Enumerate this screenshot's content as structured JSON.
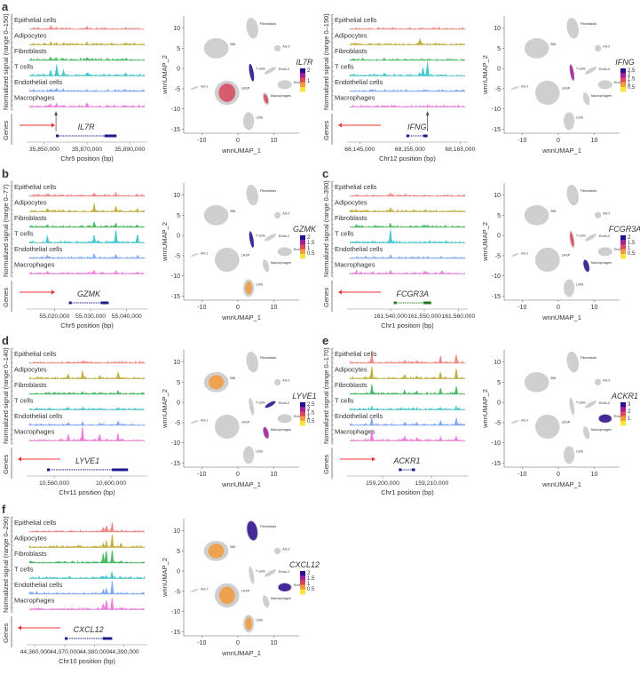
{
  "track_colors": [
    "#f0746e",
    "#b8a21a",
    "#2ab24a",
    "#22bfc4",
    "#6b9cf5",
    "#ee66d8"
  ],
  "colormap": [
    "#f9e33a",
    "#f39a3a",
    "#d9485f",
    "#a3209a",
    "#2b0d8f"
  ],
  "tracks": [
    "Epithelial cells",
    "Adipocytes",
    "Fibroblasts",
    "T cells",
    "Endothelial cells",
    "Macrophages"
  ],
  "genes_label": "Genes",
  "umap": {
    "xlabel": "wnnUMAP_1",
    "ylabel": "wnnUMAP_2",
    "xticks": [
      -10,
      0,
      10
    ],
    "yticks": [
      10,
      5,
      0,
      -5,
      -10,
      -15
    ],
    "xlim": [
      -15,
      17
    ],
    "ylim": [
      -16,
      13
    ],
    "clusters": [
      {
        "name": "Fibroblasts",
        "x": 4,
        "y": 10,
        "rx": 1.6,
        "ry": 2.6,
        "rot": -10
      },
      {
        "name": "BM",
        "x": -6,
        "y": 5,
        "rx": 3.4,
        "ry": 2.5,
        "rot": 0
      },
      {
        "name": "Ad-2",
        "x": 11,
        "y": 5,
        "rx": 0.9,
        "ry": 0.8,
        "rot": 0
      },
      {
        "name": "T cells",
        "x": 3.8,
        "y": -1,
        "rx": 0.6,
        "ry": 2.2,
        "rot": -10
      },
      {
        "name": "Endo-2",
        "x": 9,
        "y": -0.5,
        "rx": 1.8,
        "ry": 0.5,
        "rot": -30
      },
      {
        "name": "Endo-1",
        "x": 13,
        "y": -4,
        "rx": 2.0,
        "ry": 1.1,
        "rot": 0
      },
      {
        "name": "Ad-1",
        "x": -12,
        "y": -4.8,
        "rx": 1.2,
        "ry": 0.25,
        "rot": -20
      },
      {
        "name": "LASP",
        "x": -3,
        "y": -6,
        "rx": 3.4,
        "ry": 3.0,
        "rot": 0
      },
      {
        "name": "Macrophages",
        "x": 7.8,
        "y": -7.5,
        "rx": 0.8,
        "ry": 1.6,
        "rot": -15
      },
      {
        "name": "LMS",
        "x": 3,
        "y": -13,
        "rx": 1.5,
        "ry": 2.2,
        "rot": 0
      }
    ]
  },
  "chart_data": [
    {
      "type": "area",
      "panel": "a",
      "gene": "IL7R",
      "ylabel": "Normalized signal (range 0–150)",
      "ymax": 150,
      "xlabel": "Chr5 position (bp)",
      "xlim": [
        35843000,
        35897000
      ],
      "xticks": [
        35850000,
        35870000,
        35890000
      ],
      "xtick_labels": [
        "35,850,000",
        "35,870,000",
        "35,890,000"
      ],
      "gene_start": 35855500,
      "gene_end": 35883800,
      "strand": "+",
      "marker": 35855500,
      "gene_color": "#1c1c8f",
      "peaks": [
        {
          "pos": 35853000,
          "h": [
            30,
            25,
            35,
            60,
            25,
            30
          ]
        },
        {
          "pos": 35855800,
          "h": [
            20,
            15,
            20,
            120,
            35,
            35
          ]
        },
        {
          "pos": 35859000,
          "h": [
            10,
            10,
            12,
            60,
            12,
            15
          ]
        },
        {
          "pos": 35870000,
          "h": [
            25,
            20,
            25,
            35,
            15,
            40
          ]
        },
        {
          "pos": 35888000,
          "h": [
            10,
            8,
            10,
            25,
            8,
            10
          ]
        }
      ],
      "colorbar_ticks": [
        1,
        2
      ],
      "expression": [
        {
          "cluster": "T cells",
          "level": 2.3
        },
        {
          "cluster": "LASP",
          "level": 0.9
        },
        {
          "cluster": "Macrophages",
          "level": 0.8
        }
      ]
    },
    {
      "type": "area",
      "panel": "",
      "gene": "IFNG",
      "ylabel": "Normalized signal (range 0–190)",
      "ymax": 190,
      "xlabel": "Chr12 position (bp)",
      "xlim": [
        68143000,
        68166000
      ],
      "xticks": [
        68145000,
        68155000,
        68165000
      ],
      "xtick_labels": [
        "68,145,000",
        "68,155,000",
        "68,165,000"
      ],
      "gene_start": 68154300,
      "gene_end": 68158500,
      "strand": "-",
      "marker": 68158500,
      "gene_color": "#1c1c8f",
      "peaks": [
        {
          "pos": 68158500,
          "h": [
            5,
            4,
            8,
            190,
            6,
            5
          ]
        },
        {
          "pos": 68157600,
          "h": [
            4,
            4,
            6,
            110,
            5,
            5
          ]
        },
        {
          "pos": 68157000,
          "h": [
            3,
            80,
            4,
            30,
            4,
            4
          ]
        },
        {
          "pos": 68150000,
          "h": [
            4,
            3,
            12,
            30,
            6,
            8
          ]
        }
      ],
      "colorbar_ticks": [
        0.5,
        1.0,
        1.5,
        2.0,
        2.5
      ],
      "expression": [
        {
          "cluster": "T cells",
          "level": 2.0
        }
      ]
    },
    {
      "type": "area",
      "panel": "b",
      "gene": "GZMK",
      "ylabel": "Normalized signal (range 0–77)",
      "ymax": 77,
      "xlabel": "Chr5 position (bp)",
      "xlim": [
        55013000,
        55045000
      ],
      "xticks": [
        55020000,
        55030000,
        55040000
      ],
      "xtick_labels": [
        "55,020,000",
        "55,030,000",
        "55,040,000"
      ],
      "gene_start": 55024000,
      "gene_end": 55035000,
      "strand": "+",
      "marker": null,
      "gene_color": "#1c1c8f",
      "peaks": [
        {
          "pos": 55018000,
          "h": [
            10,
            15,
            15,
            40,
            15,
            12
          ]
        },
        {
          "pos": 55031000,
          "h": [
            15,
            40,
            30,
            45,
            25,
            15
          ]
        },
        {
          "pos": 55037000,
          "h": [
            15,
            30,
            20,
            75,
            20,
            15
          ]
        },
        {
          "pos": 55043000,
          "h": [
            10,
            15,
            10,
            45,
            15,
            10
          ]
        }
      ],
      "colorbar_ticks": [
        0.5,
        1.0,
        1.5,
        2.0
      ],
      "expression": [
        {
          "cluster": "T cells",
          "level": 1.8
        },
        {
          "cluster": "LMS",
          "level": 0.6
        }
      ]
    },
    {
      "type": "area",
      "panel": "c",
      "gene": "FCGR3A",
      "ylabel": "Normalized signal (range 0–390)",
      "ymax": 390,
      "xlabel": "Chr1 position (bp)",
      "xlim": [
        161528000,
        161562000
      ],
      "xticks": [
        161540000,
        161550000,
        161560000
      ],
      "xtick_labels": [
        "161,540,000",
        "161,550,000",
        "161,560,000"
      ],
      "gene_start": 161541000,
      "gene_end": 161552000,
      "strand": "-",
      "marker": null,
      "gene_color": "#1a7a1a",
      "peaks": [
        {
          "pos": 161540000,
          "h": [
            80,
            90,
            110,
            380,
            90,
            100
          ]
        },
        {
          "pos": 161530000,
          "h": [
            20,
            40,
            60,
            30,
            20,
            80
          ]
        },
        {
          "pos": 161550000,
          "h": [
            20,
            30,
            20,
            30,
            20,
            70
          ]
        },
        {
          "pos": 161555000,
          "h": [
            5,
            5,
            5,
            10,
            5,
            50
          ]
        }
      ],
      "colorbar_ticks": [
        0.5,
        1.0,
        1.5,
        2.0
      ],
      "expression": [
        {
          "cluster": "Macrophages",
          "level": 2.0
        },
        {
          "cluster": "T cells",
          "level": 1.2
        }
      ]
    },
    {
      "type": "area",
      "panel": "d",
      "gene": "LYVE1",
      "ylabel": "Normalized signal (range 0–140)",
      "ymax": 140,
      "xlabel": "Chr11 position (bp)",
      "xlim": [
        10542500,
        10623750
      ],
      "xticks": [
        10560000,
        10600000
      ],
      "xtick_labels": [
        "10,560,000",
        "10,600,000"
      ],
      "gene_start": 10555000,
      "gene_end": 10612000,
      "strand": "-",
      "marker": null,
      "gene_color": "#1c1c8f",
      "peaks": [
        {
          "pos": 10580000,
          "h": [
            10,
            80,
            15,
            12,
            35,
            140
          ]
        },
        {
          "pos": 10570000,
          "h": [
            8,
            40,
            15,
            10,
            30,
            60
          ]
        },
        {
          "pos": 10605000,
          "h": [
            10,
            60,
            30,
            15,
            40,
            70
          ]
        },
        {
          "pos": 10592000,
          "h": [
            6,
            30,
            10,
            10,
            20,
            50
          ]
        }
      ],
      "colorbar_ticks": [
        0.5,
        1.0,
        1.5,
        2.0,
        2.5
      ],
      "expression": [
        {
          "cluster": "Endo-2",
          "level": 2.4
        },
        {
          "cluster": "Macrophages",
          "level": 2.0
        },
        {
          "cluster": "BM",
          "level": 0.7
        }
      ]
    },
    {
      "type": "area",
      "panel": "e",
      "gene": "ACKR1",
      "ylabel": "Normalized signal (range 0–170)",
      "ymax": 170,
      "xlabel": "Chr1 position (bp)",
      "xlim": [
        159193300,
        159216800
      ],
      "xticks": [
        159200000,
        159210000
      ],
      "xtick_labels": [
        "159,200,000",
        "159,210,000"
      ],
      "gene_start": 159203300,
      "gene_end": 159206600,
      "strand": "+",
      "marker": null,
      "gene_color": "#1c1c8f",
      "peaks": [
        {
          "pos": 159197800,
          "h": [
            130,
            160,
            120,
            40,
            90,
            150
          ]
        },
        {
          "pos": 159215000,
          "h": [
            110,
            110,
            100,
            30,
            90,
            60
          ]
        },
        {
          "pos": 159211800,
          "h": [
            90,
            70,
            70,
            25,
            50,
            50
          ]
        },
        {
          "pos": 159204500,
          "h": [
            30,
            40,
            40,
            15,
            40,
            60
          ]
        },
        {
          "pos": 159207000,
          "h": [
            30,
            30,
            40,
            12,
            30,
            40
          ]
        }
      ],
      "colorbar_ticks": [
        1,
        2,
        3
      ],
      "expression": [
        {
          "cluster": "Endo-1",
          "level": 2.8
        }
      ]
    },
    {
      "type": "area",
      "panel": "f",
      "gene": "CXCL12",
      "ylabel": "Normalized signal (range 0–290)",
      "ymax": 290,
      "xlabel": "Chr10 position (bp)",
      "xlim": [
        44358000,
        44397000
      ],
      "xticks": [
        44360000,
        44370000,
        44380000,
        44390000
      ],
      "xtick_labels": [
        "44,360,000",
        "44,370,000",
        "44,380,000",
        "44,390,000"
      ],
      "gene_start": 44370000,
      "gene_end": 44386000,
      "strand": "-",
      "marker": null,
      "gene_color": "#1c1c8f",
      "peaks": [
        {
          "pos": 44386000,
          "h": [
            200,
            270,
            280,
            110,
            280,
            260
          ]
        },
        {
          "pos": 44384000,
          "h": [
            120,
            120,
            240,
            60,
            120,
            190
          ]
        },
        {
          "pos": 44383000,
          "h": [
            90,
            60,
            180,
            40,
            90,
            120
          ]
        },
        {
          "pos": 44389000,
          "h": [
            20,
            90,
            40,
            20,
            30,
            40
          ]
        }
      ],
      "colorbar_ticks": [
        0.5,
        1.0,
        1.5,
        2.0
      ],
      "expression": [
        {
          "cluster": "Fibroblasts",
          "level": 1.8
        },
        {
          "cluster": "Endo-1",
          "level": 1.9
        },
        {
          "cluster": "BM",
          "level": 0.7
        },
        {
          "cluster": "LASP",
          "level": 0.7
        },
        {
          "cluster": "LMS",
          "level": 0.6
        }
      ]
    }
  ]
}
